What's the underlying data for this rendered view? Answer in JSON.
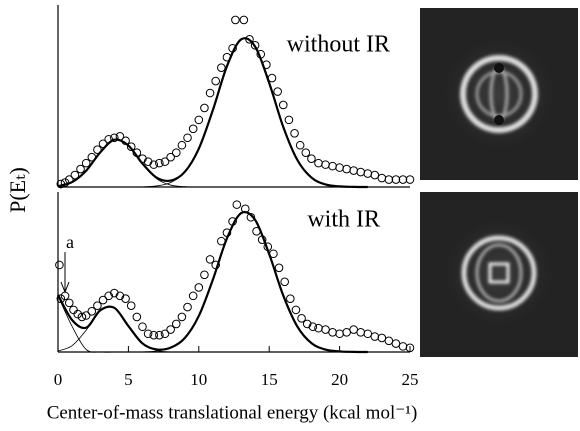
{
  "chart_data": [
    {
      "type": "scatter",
      "ylabel": "P(Eₜ)",
      "annotations": [
        "without IR"
      ],
      "xlim": [
        0,
        25
      ],
      "ylim": [
        0,
        1.22
      ],
      "series": [
        {
          "style": "markers",
          "color": "#000000",
          "x": [
            0.2,
            0.5,
            0.8,
            1.2,
            1.6,
            2.0,
            2.4,
            2.8,
            3.2,
            3.6,
            4.0,
            4.4,
            4.8,
            5.2,
            5.6,
            6.0,
            6.4,
            6.8,
            7.2,
            7.6,
            8.0,
            8.4,
            8.8,
            9.2,
            9.6,
            10.0,
            10.4,
            10.8,
            11.2,
            11.6,
            12.0,
            12.4,
            12.6,
            13.2,
            13.6,
            14.0,
            14.4,
            14.8,
            15.2,
            15.6,
            16.0,
            16.4,
            16.8,
            17.2,
            17.6,
            18.0,
            18.5,
            19.0,
            19.5,
            20.0,
            20.5,
            21.0,
            21.5,
            22.0,
            22.5,
            23.0,
            23.5,
            24.0,
            24.5,
            25.0
          ],
          "values": [
            0.02,
            0.03,
            0.05,
            0.08,
            0.12,
            0.16,
            0.2,
            0.25,
            0.29,
            0.32,
            0.33,
            0.34,
            0.31,
            0.27,
            0.23,
            0.19,
            0.17,
            0.15,
            0.16,
            0.17,
            0.2,
            0.23,
            0.28,
            0.33,
            0.39,
            0.45,
            0.53,
            0.63,
            0.71,
            0.8,
            0.87,
            0.93,
            1.12,
            1.12,
            0.99,
            0.95,
            0.89,
            0.82,
            0.73,
            0.64,
            0.55,
            0.45,
            0.36,
            0.28,
            0.23,
            0.19,
            0.16,
            0.15,
            0.14,
            0.13,
            0.12,
            0.11,
            0.1,
            0.09,
            0.08,
            0.06,
            0.05,
            0.05,
            0.05,
            0.05
          ]
        },
        {
          "style": "line",
          "color": "#000000",
          "width": 2.2,
          "x": [
            0,
            1,
            2,
            3,
            4,
            5,
            6,
            7,
            8,
            9,
            10,
            11,
            12,
            13,
            14,
            15,
            16,
            17,
            18,
            19,
            20,
            21,
            22
          ],
          "values": [
            0.006,
            0.033,
            0.109,
            0.232,
            0.317,
            0.278,
            0.157,
            0.063,
            0.043,
            0.101,
            0.257,
            0.516,
            0.81,
            0.989,
            0.941,
            0.697,
            0.402,
            0.181,
            0.063,
            0.017,
            0.004,
            0.001,
            0
          ]
        },
        {
          "style": "line",
          "color": "#000000",
          "width": 0.8,
          "x": [
            0,
            1,
            2,
            3,
            4,
            5,
            6,
            7,
            8,
            9,
            10
          ],
          "values": [
            0.006,
            0.033,
            0.109,
            0.232,
            0.317,
            0.278,
            0.156,
            0.056,
            0.013,
            0.002,
            0
          ]
        },
        {
          "style": "line",
          "color": "#000000",
          "width": 0.8,
          "x": [
            5,
            6,
            7,
            8,
            9,
            10,
            11,
            12,
            13,
            14,
            15,
            16,
            17,
            18,
            19,
            20,
            21,
            22
          ],
          "values": [
            0,
            0.001,
            0.007,
            0.03,
            0.099,
            0.257,
            0.516,
            0.81,
            0.989,
            0.941,
            0.697,
            0.402,
            0.181,
            0.063,
            0.017,
            0.004,
            0.001,
            0
          ]
        }
      ]
    },
    {
      "type": "scatter",
      "xlabel": "Center-of-mass translational energy (kcal mol⁻¹)",
      "annotations": [
        "with IR",
        "a"
      ],
      "xlim": [
        0,
        25
      ],
      "ylim": [
        0,
        1.14
      ],
      "xticks": [
        0,
        5,
        10,
        15,
        20,
        25
      ],
      "series": [
        {
          "style": "markers",
          "color": "#000000",
          "x": [
            0.1,
            0.2,
            0.5,
            0.8,
            1.1,
            1.4,
            1.7,
            2.0,
            2.4,
            2.8,
            3.2,
            3.6,
            4.0,
            4.4,
            4.8,
            5.2,
            5.6,
            6.0,
            6.4,
            6.8,
            7.2,
            7.6,
            8.0,
            8.4,
            8.8,
            9.2,
            9.6,
            10.0,
            10.4,
            10.8,
            11.2,
            11.6,
            12.0,
            12.4,
            12.7,
            13.3,
            13.7,
            14.1,
            14.5,
            14.9,
            15.3,
            15.7,
            16.1,
            16.5,
            16.9,
            17.3,
            17.7,
            18.1,
            18.5,
            19.0,
            19.5,
            20.0,
            20.5,
            21.0,
            21.5,
            22.0,
            22.5,
            23.0,
            23.5,
            24.0,
            24.5,
            25.0
          ],
          "values": [
            0.62,
            0.38,
            0.4,
            0.35,
            0.3,
            0.27,
            0.25,
            0.26,
            0.29,
            0.33,
            0.37,
            0.4,
            0.42,
            0.4,
            0.38,
            0.33,
            0.25,
            0.18,
            0.13,
            0.12,
            0.12,
            0.13,
            0.16,
            0.2,
            0.25,
            0.32,
            0.4,
            0.46,
            0.55,
            0.66,
            0.62,
            0.79,
            0.85,
            0.93,
            1.05,
            1.02,
            0.96,
            0.86,
            0.8,
            0.75,
            0.7,
            0.6,
            0.5,
            0.38,
            0.3,
            0.24,
            0.2,
            0.18,
            0.17,
            0.16,
            0.14,
            0.13,
            0.14,
            0.16,
            0.14,
            0.13,
            0.11,
            0.1,
            0.08,
            0.06,
            0.04,
            0.03
          ]
        },
        {
          "style": "line",
          "color": "#000000",
          "width": 2.2,
          "x": [
            0,
            1,
            2,
            3,
            4,
            5,
            6,
            7,
            8,
            9,
            10,
            11,
            12,
            13,
            14,
            15,
            16,
            17,
            18,
            19,
            20,
            21,
            22
          ],
          "values": [
            0.407,
            0.228,
            0.173,
            0.297,
            0.315,
            0.185,
            0.061,
            0.018,
            0.031,
            0.099,
            0.257,
            0.516,
            0.81,
            0.989,
            0.941,
            0.697,
            0.402,
            0.181,
            0.063,
            0.017,
            0.004,
            0.001,
            0
          ]
        },
        {
          "style": "line",
          "color": "#000000",
          "width": 0.8,
          "x": [
            0,
            1,
            2,
            3,
            4
          ],
          "values": [
            0.4,
            0.183,
            0.018,
            0,
            0
          ]
        },
        {
          "style": "line",
          "color": "#000000",
          "width": 0.8,
          "x": [
            0,
            1,
            2,
            3,
            4,
            5,
            6,
            7,
            8,
            9
          ],
          "values": [
            0.007,
            0.045,
            0.155,
            0.297,
            0.315,
            0.185,
            0.06,
            0.011,
            0.001,
            0
          ]
        },
        {
          "style": "line",
          "color": "#000000",
          "width": 0.8,
          "x": [
            5,
            6,
            7,
            8,
            9,
            10,
            11,
            12,
            13,
            14,
            15,
            16,
            17,
            18,
            19,
            20,
            21,
            22
          ],
          "values": [
            0,
            0.001,
            0.007,
            0.03,
            0.099,
            0.257,
            0.516,
            0.81,
            0.989,
            0.941,
            0.697,
            0.402,
            0.181,
            0.063,
            0.017,
            0.004,
            0.001,
            0
          ]
        }
      ]
    }
  ]
}
